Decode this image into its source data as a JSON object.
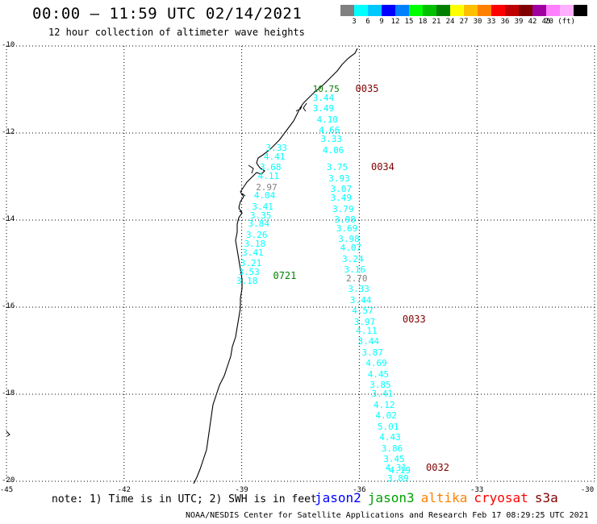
{
  "title": "00:00 – 11:59 UTC 02/14/2021",
  "subtitle": "12 hour collection of altimeter wave heights",
  "colorbar": {
    "colors": [
      "#808080",
      "#00ffff",
      "#00c8ff",
      "#0000ff",
      "#0080ff",
      "#00ff00",
      "#00c000",
      "#008000",
      "#ffff00",
      "#ffc000",
      "#ff8000",
      "#ff0000",
      "#c00000",
      "#800000",
      "#a000a0",
      "#ff80ff",
      "#ffb0ff",
      "#000000"
    ],
    "labels": [
      "3",
      "6",
      "9",
      "12",
      "15",
      "18",
      "21",
      "24",
      "27",
      "30",
      "33",
      "36",
      "39",
      "42",
      "45",
      "70 (ft)"
    ]
  },
  "axes": {
    "y_ticks": [
      "-10",
      "-12",
      "-14",
      "-16",
      "-18",
      "-20"
    ],
    "x_ticks": [
      "-45",
      "-42",
      "-39",
      "-36",
      "-33",
      "-30"
    ],
    "lon_range": [
      -45,
      -30
    ],
    "lat_range": [
      -20,
      -10
    ]
  },
  "passes": [
    {
      "label": "0035",
      "color": "#800000",
      "lon": -36.1,
      "lat": -11.0
    },
    {
      "label": "0034",
      "color": "#800000",
      "lon": -35.7,
      "lat": -12.8
    },
    {
      "label": "0721",
      "color": "#008000",
      "lon": -38.2,
      "lat": -15.3
    },
    {
      "label": "0033",
      "color": "#800000",
      "lon": -34.9,
      "lat": -16.3
    },
    {
      "label": "0032",
      "color": "#800000",
      "lon": -34.3,
      "lat": -19.7
    }
  ],
  "wave_heights": [
    {
      "v": "10.75",
      "color": "#008000",
      "lon": -36.9,
      "lat": -11.0
    },
    {
      "v": "3.44",
      "color": "#00ffff",
      "lon": -36.9,
      "lat": -11.2
    },
    {
      "v": "3.49",
      "color": "#00ffff",
      "lon": -36.9,
      "lat": -11.45
    },
    {
      "v": "4.10",
      "color": "#00ffff",
      "lon": -36.8,
      "lat": -11.7
    },
    {
      "v": "4.66",
      "color": "#00ffff",
      "lon": -36.75,
      "lat": -11.95
    },
    {
      "v": "3.33",
      "color": "#00ffff",
      "lon": -36.7,
      "lat": -12.15
    },
    {
      "v": "4.06",
      "color": "#00ffff",
      "lon": -36.65,
      "lat": -12.4
    },
    {
      "v": "3.75",
      "color": "#00ffff",
      "lon": -36.55,
      "lat": -12.8
    },
    {
      "v": "3.93",
      "color": "#00ffff",
      "lon": -36.5,
      "lat": -13.05
    },
    {
      "v": "3.07",
      "color": "#00ffff",
      "lon": -36.45,
      "lat": -13.3
    },
    {
      "v": "3.49",
      "color": "#00ffff",
      "lon": -36.45,
      "lat": -13.5
    },
    {
      "v": "3.79",
      "color": "#00ffff",
      "lon": -36.4,
      "lat": -13.75
    },
    {
      "v": "3.98",
      "color": "#00ffff",
      "lon": -36.35,
      "lat": -14.0
    },
    {
      "v": "3.69",
      "color": "#00ffff",
      "lon": -36.3,
      "lat": -14.2
    },
    {
      "v": "3.98",
      "color": "#00ffff",
      "lon": -36.25,
      "lat": -14.45
    },
    {
      "v": "4.07",
      "color": "#00ffff",
      "lon": -36.2,
      "lat": -14.65
    },
    {
      "v": "3.24",
      "color": "#00ffff",
      "lon": -36.15,
      "lat": -14.9
    },
    {
      "v": "3.16",
      "color": "#00ffff",
      "lon": -36.1,
      "lat": -15.15
    },
    {
      "v": "2.70",
      "color": "#808080",
      "lon": -36.05,
      "lat": -15.35
    },
    {
      "v": "3.33",
      "color": "#00ffff",
      "lon": -36.0,
      "lat": -15.6
    },
    {
      "v": "3.44",
      "color": "#00ffff",
      "lon": -35.95,
      "lat": -15.85
    },
    {
      "v": "4.57",
      "color": "#00ffff",
      "lon": -35.9,
      "lat": -16.1
    },
    {
      "v": "3.97",
      "color": "#00ffff",
      "lon": -35.85,
      "lat": -16.35
    },
    {
      "v": "4.11",
      "color": "#00ffff",
      "lon": -35.8,
      "lat": -16.55
    },
    {
      "v": "3.44",
      "color": "#00ffff",
      "lon": -35.75,
      "lat": -16.8
    },
    {
      "v": "3.87",
      "color": "#00ffff",
      "lon": -35.65,
      "lat": -17.05
    },
    {
      "v": "4.69",
      "color": "#00ffff",
      "lon": -35.55,
      "lat": -17.3
    },
    {
      "v": "4.45",
      "color": "#00ffff",
      "lon": -35.5,
      "lat": -17.55
    },
    {
      "v": "3.85",
      "color": "#00ffff",
      "lon": -35.45,
      "lat": -17.8
    },
    {
      "v": "3.41",
      "color": "#00ffff",
      "lon": -35.4,
      "lat": -18.0
    },
    {
      "v": "4.12",
      "color": "#00ffff",
      "lon": -35.35,
      "lat": -18.25
    },
    {
      "v": "4.02",
      "color": "#00ffff",
      "lon": -35.3,
      "lat": -18.5
    },
    {
      "v": "5.01",
      "color": "#00ffff",
      "lon": -35.25,
      "lat": -18.75
    },
    {
      "v": "4.43",
      "color": "#00ffff",
      "lon": -35.2,
      "lat": -19.0
    },
    {
      "v": "3.86",
      "color": "#00ffff",
      "lon": -35.15,
      "lat": -19.25
    },
    {
      "v": "3.45",
      "color": "#00ffff",
      "lon": -35.1,
      "lat": -19.5
    },
    {
      "v": "4.31",
      "color": "#00ffff",
      "lon": -35.05,
      "lat": -19.7
    },
    {
      "v": "4.19",
      "color": "#00ffff",
      "lon": -34.95,
      "lat": -19.75
    },
    {
      "v": "3.89",
      "color": "#00ffff",
      "lon": -35.0,
      "lat": -19.95
    },
    {
      "v": "3.33",
      "color": "#00ffff",
      "lon": -38.1,
      "lat": -12.35
    },
    {
      "v": "4.41",
      "color": "#00ffff",
      "lon": -38.15,
      "lat": -12.55
    },
    {
      "v": "3.68",
      "color": "#00ffff",
      "lon": -38.25,
      "lat": -12.8
    },
    {
      "v": "4.11",
      "color": "#00ffff",
      "lon": -38.3,
      "lat": -13.0
    },
    {
      "v": "2.97",
      "color": "#808080",
      "lon": -38.35,
      "lat": -13.25
    },
    {
      "v": "4.04",
      "color": "#00ffff",
      "lon": -38.4,
      "lat": -13.45
    },
    {
      "v": "3.41",
      "color": "#00ffff",
      "lon": -38.45,
      "lat": -13.7
    },
    {
      "v": "3.35",
      "color": "#00ffff",
      "lon": -38.5,
      "lat": -13.9
    },
    {
      "v": "3.84",
      "color": "#00ffff",
      "lon": -38.55,
      "lat": -14.1
    },
    {
      "v": "3.26",
      "color": "#00ffff",
      "lon": -38.6,
      "lat": -14.35
    },
    {
      "v": "3.18",
      "color": "#00ffff",
      "lon": -38.65,
      "lat": -14.55
    },
    {
      "v": "3.41",
      "color": "#00ffff",
      "lon": -38.7,
      "lat": -14.75
    },
    {
      "v": "3.21",
      "color": "#00ffff",
      "lon": -38.75,
      "lat": -15.0
    },
    {
      "v": "3.53",
      "color": "#00ffff",
      "lon": -38.8,
      "lat": -15.2
    },
    {
      "v": "3.18",
      "color": "#00ffff",
      "lon": -38.85,
      "lat": -15.4
    }
  ],
  "note": "note: 1) Time is in UTC; 2) SWH is in feet",
  "legend": [
    {
      "name": "jason2",
      "color": "#0000ff"
    },
    {
      "name": "jason3",
      "color": "#00a000"
    },
    {
      "name": "altika",
      "color": "#ff8000"
    },
    {
      "name": "cryosat",
      "color": "#ff0000"
    },
    {
      "name": "s3a",
      "color": "#800000"
    }
  ],
  "credit": "NOAA/NESDIS Center for Satellite Applications and Research   Feb 17 08:29:25 UTC 2021"
}
